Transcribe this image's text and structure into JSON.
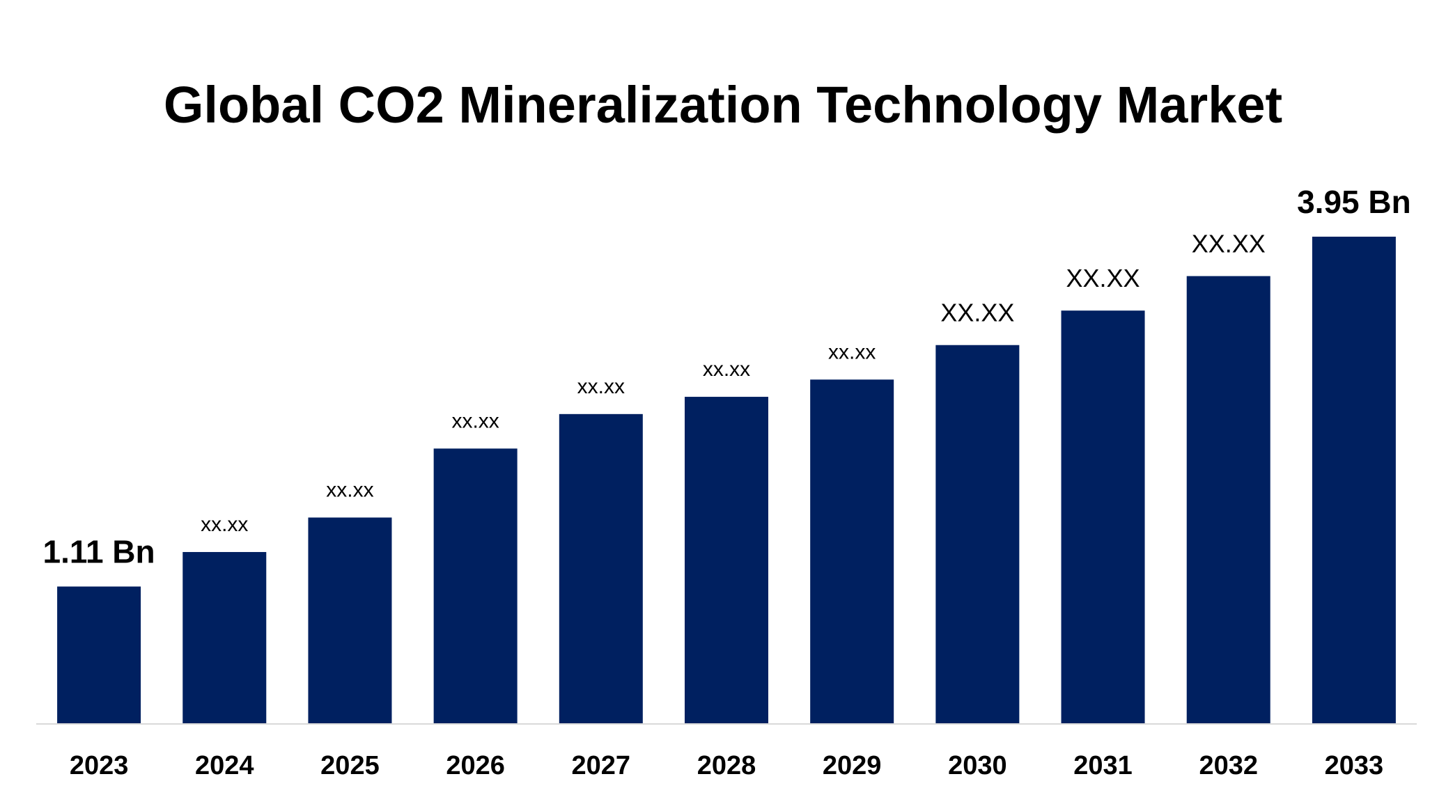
{
  "chart_data": {
    "type": "bar",
    "title": "Global CO2 Mineralization Technology Market",
    "xlabel": "",
    "ylabel": "",
    "categories": [
      "2023",
      "2024",
      "2025",
      "2026",
      "2027",
      "2028",
      "2029",
      "2030",
      "2031",
      "2032",
      "2033"
    ],
    "values": [
      1.11,
      1.39,
      1.67,
      2.23,
      2.51,
      2.65,
      2.79,
      3.07,
      3.35,
      3.63,
      3.95
    ],
    "data_labels": [
      "1.11 Bn",
      "xx.xx",
      "xx.xx",
      "xx.xx",
      "xx.xx",
      "xx.xx",
      "xx.xx",
      "XX.XX",
      "XX.XX",
      "XX.XX",
      "3.95 Bn"
    ],
    "ylim": [
      0,
      4.2
    ],
    "grid": false,
    "legend": "none",
    "bar_color": "#002060",
    "axis_color": "#d9d9d9"
  }
}
